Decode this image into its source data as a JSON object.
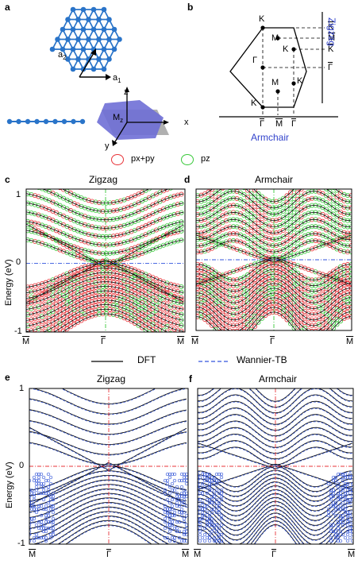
{
  "panels": {
    "a": {
      "label": "a",
      "a1": "a",
      "a1_sub": "1",
      "a2": "a",
      "a2_sub": "2",
      "mz": "M",
      "mz_sub": "z",
      "z": "z",
      "x": "x",
      "y": "y"
    },
    "b": {
      "label": "b",
      "K": "K",
      "M": "M",
      "Gamma": "Γ",
      "zigzag": "Zigzag",
      "armchair": "Armchair",
      "right_axis": [
        "K",
        "M",
        "K",
        "Γ"
      ],
      "bottom_axis": [
        "Γ",
        "M",
        "Γ"
      ]
    },
    "c": {
      "label": "c",
      "title": "Zigzag"
    },
    "d": {
      "label": "d",
      "title": "Armchair"
    },
    "e": {
      "label": "e",
      "title": "Zigzag"
    },
    "f": {
      "label": "f",
      "title": "Armchair"
    }
  },
  "legend_orbital": {
    "items": [
      {
        "label": "px+py",
        "color": "#e8353a"
      },
      {
        "label": "pz",
        "color": "#39c93b"
      }
    ]
  },
  "legend_method": {
    "items": [
      {
        "label": "DFT",
        "color": "#000000",
        "style": "solid"
      },
      {
        "label": "Wannier-TB",
        "color": "#3355dd",
        "style": "dashed"
      }
    ]
  },
  "axes": {
    "ylabel": "Energy (eV)",
    "yticks": [
      "1",
      "0",
      "-1"
    ],
    "xticks": [
      "M",
      "Γ",
      "M"
    ]
  },
  "colors": {
    "pxpy": "#e8353a",
    "pz": "#39c93b",
    "wannier": "#3a5bd9",
    "fermi": "#3355dd",
    "gamma_line": "#39c93b",
    "fermi_red": "#e8353a",
    "atom": "#2a74c9"
  }
}
